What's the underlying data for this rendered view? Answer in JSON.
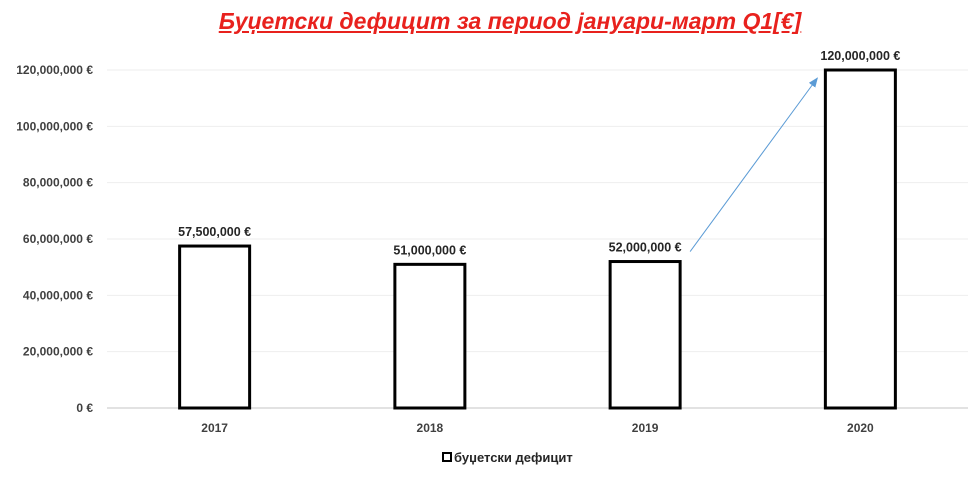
{
  "chart_data": {
    "type": "bar",
    "title": "Буџетски дефицит за период јануари-март Q1[€]",
    "categories": [
      "2017",
      "2018",
      "2019",
      "2020"
    ],
    "series": [
      {
        "name": "буџетски дефицит",
        "values": [
          57500000,
          51000000,
          52000000,
          120000000
        ],
        "data_labels": [
          "57,500,000 €",
          "51,000,000 €",
          "52,000,000 €",
          "120,000,000 €"
        ]
      }
    ],
    "y_ticks": [
      "0 €",
      "20,000,000 €",
      "40,000,000 €",
      "60,000,000 €",
      "80,000,000 €",
      "100,000,000 €",
      "120,000,000 €"
    ],
    "y_tick_values": [
      0,
      20000000,
      40000000,
      60000000,
      80000000,
      100000000,
      120000000
    ],
    "ylim": [
      0,
      120000000
    ],
    "grid": true,
    "legend_position": "bottom",
    "annotation": "arrow from 2019 bar to 2020 bar",
    "colors": {
      "title": "#e8211d",
      "bar_fill": "#ffffff",
      "bar_stroke": "#000000",
      "gridline": "#eeeeee",
      "axis": "#d9d9d9",
      "arrow": "#5b9bd5"
    }
  }
}
